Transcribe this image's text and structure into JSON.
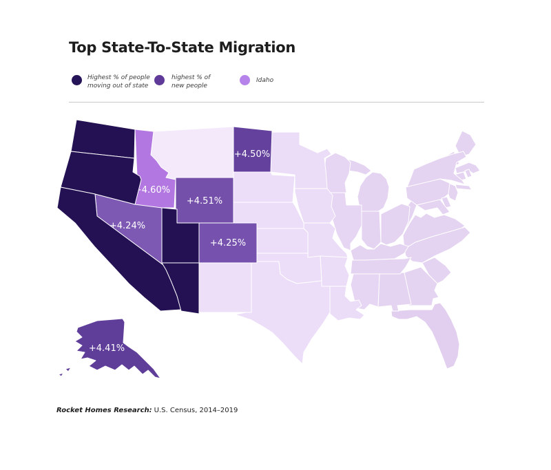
{
  "title": "Top State-To-State Migration",
  "legend": {
    "items": [
      {
        "lines": [
          "Highest % of people",
          "moving out of state"
        ],
        "color": "#251457"
      },
      {
        "lines": [
          "highest % of",
          "new people"
        ],
        "color": "#5f3a99"
      },
      {
        "lines": [
          "Idaho"
        ],
        "color": "#b683ea"
      }
    ]
  },
  "map": {
    "stroke_color": "#ffffff",
    "label_color": "#ffffff",
    "category_colors": {
      "moving_out": "#241154",
      "new_people": "#6f4ba6",
      "idaho": "#b277e0",
      "other": "#e9d9f5"
    },
    "states": [
      {
        "id": "ME",
        "name": "Maine",
        "fill": "#e4d3f1"
      },
      {
        "id": "NH",
        "name": "New Hampshire",
        "fill": "#e4d3f1"
      },
      {
        "id": "VT",
        "name": "Vermont",
        "fill": "#e4d3f1"
      },
      {
        "id": "MA",
        "name": "Massachusetts",
        "fill": "#e4d3f1"
      },
      {
        "id": "RI",
        "name": "Rhode Island",
        "fill": "#e4d3f1"
      },
      {
        "id": "CT",
        "name": "Connecticut",
        "fill": "#e4d3f1"
      },
      {
        "id": "NY",
        "name": "New York",
        "fill": "#e4d3f1"
      },
      {
        "id": "NJ",
        "name": "New Jersey",
        "fill": "#e4d3f1"
      },
      {
        "id": "PA",
        "name": "Pennsylvania",
        "fill": "#e4d3f1"
      },
      {
        "id": "DE",
        "name": "Delaware",
        "fill": "#e4d3f1"
      },
      {
        "id": "MD",
        "name": "Maryland",
        "fill": "#e4d3f1"
      },
      {
        "id": "WV",
        "name": "West Virginia",
        "fill": "#e4d3f1"
      },
      {
        "id": "VA",
        "name": "Virginia",
        "fill": "#e4d3f1"
      },
      {
        "id": "NC",
        "name": "North Carolina",
        "fill": "#e4d3f1"
      },
      {
        "id": "SC",
        "name": "South Carolina",
        "fill": "#e4d3f1"
      },
      {
        "id": "GA",
        "name": "Georgia",
        "fill": "#e4d3f1"
      },
      {
        "id": "FL",
        "name": "Florida",
        "fill": "#e2cfef"
      },
      {
        "id": "AL",
        "name": "Alabama",
        "fill": "#e4d3f1"
      },
      {
        "id": "MS",
        "name": "Mississippi",
        "fill": "#e6d6f3"
      },
      {
        "id": "TN",
        "name": "Tennessee",
        "fill": "#e4d3f1"
      },
      {
        "id": "KY",
        "name": "Kentucky",
        "fill": "#e4d3f1"
      },
      {
        "id": "OH",
        "name": "Ohio",
        "fill": "#e4d3f1"
      },
      {
        "id": "IN",
        "name": "Indiana",
        "fill": "#e4d3f1"
      },
      {
        "id": "MI",
        "name": "Michigan",
        "fill": "#e4d3f1"
      },
      {
        "id": "IL",
        "name": "Illinois",
        "fill": "#e6d6f3"
      },
      {
        "id": "WI",
        "name": "Wisconsin",
        "fill": "#e6d6f3"
      },
      {
        "id": "MN",
        "name": "Minnesota",
        "fill": "#ebdcf7"
      },
      {
        "id": "IA",
        "name": "Iowa",
        "fill": "#ebdcf7"
      },
      {
        "id": "MO",
        "name": "Missouri",
        "fill": "#ebdcf7"
      },
      {
        "id": "AR",
        "name": "Arkansas",
        "fill": "#ebdcf7"
      },
      {
        "id": "LA",
        "name": "Louisiana",
        "fill": "#ebdcf7"
      },
      {
        "id": "TX",
        "name": "Texas",
        "fill": "#ecdef8"
      },
      {
        "id": "OK",
        "name": "Oklahoma",
        "fill": "#ecdef8"
      },
      {
        "id": "KS",
        "name": "Kansas",
        "fill": "#ecdef8"
      },
      {
        "id": "NE",
        "name": "Nebraska",
        "fill": "#ecdef8"
      },
      {
        "id": "SD",
        "name": "South Dakota",
        "fill": "#ecdef8"
      },
      {
        "id": "NM",
        "name": "New Mexico",
        "fill": "#eedff8"
      },
      {
        "id": "MT",
        "name": "Montana",
        "fill": "#f3e9fb"
      },
      {
        "id": "ID",
        "name": "Idaho",
        "fill": "#b277e0",
        "value": "+4.60%"
      },
      {
        "id": "NV",
        "name": "Nevada",
        "fill": "#7d59b4",
        "value": "+4.24%"
      },
      {
        "id": "WY",
        "name": "Wyoming",
        "fill": "#7450ab",
        "value": "+4.51%"
      },
      {
        "id": "CO",
        "name": "Colorado",
        "fill": "#7651ae",
        "value": "+4.25%"
      },
      {
        "id": "ND",
        "name": "North Dakota",
        "fill": "#63419d",
        "value": "+4.50%"
      },
      {
        "id": "AK",
        "name": "Alaska",
        "fill": "#5f3e9a",
        "value": "+4.41%"
      },
      {
        "id": "WA",
        "name": "Washington",
        "fill": "#241154"
      },
      {
        "id": "OR",
        "name": "Oregon",
        "fill": "#241154"
      },
      {
        "id": "CA",
        "name": "California",
        "fill": "#241154"
      },
      {
        "id": "UT",
        "name": "Utah",
        "fill": "#241154"
      },
      {
        "id": "AZ",
        "name": "Arizona",
        "fill": "#241154"
      }
    ]
  },
  "footer": {
    "source_label": "Rocket Homes Research:",
    "source_text": "U.S. Census, 2014–2019"
  }
}
